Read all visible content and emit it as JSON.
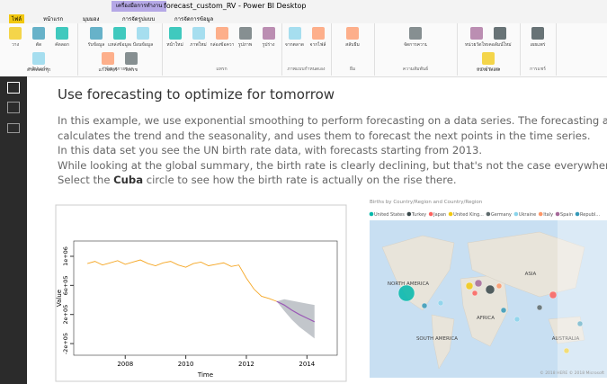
{
  "window": {
    "title": "forecast_custom_RV - Power BI Desktop",
    "context_tab": "เครื่องมือการทำงาน"
  },
  "tabs": [
    "ไฟล์",
    "หน้าแรก",
    "มุมมอง",
    "การจัดรูปแบบ",
    "การจัดการข้อมูล"
  ],
  "ribbon_groups": [
    {
      "label": "คลิปบอร์ด",
      "buttons": [
        "วาง",
        "ตัด",
        "คัดลอก",
        "ตัวคัดลอกรูปแบบ"
      ]
    },
    {
      "label": "ข้อมูลภายนอก",
      "buttons": [
        "รับข้อมูล",
        "แหล่งข้อมูลล่าสุด",
        "ป้อนข้อมูล",
        "แก้ไขคิวรี",
        "รีเฟรช"
      ]
    },
    {
      "label": "แทรก",
      "buttons": [
        "หน้าใหม่",
        "ภาพใหม่",
        "กล่องข้อความ",
        "รูปภาพ",
        "รูปร่าง"
      ]
    },
    {
      "label": "ภาพแบบกำหนดเอง",
      "buttons": [
        "จากตลาด",
        "จากไฟล์"
      ]
    },
    {
      "label": "ธีม",
      "buttons": [
        "สลับธีม"
      ]
    },
    {
      "label": "ความสัมพันธ์",
      "buttons": [
        "จัดการความสัมพันธ์"
      ]
    },
    {
      "label": "การคำนวณ",
      "buttons": [
        "หน่วยวัดใหม่",
        "คอลัมน์ใหม่",
        "หน่วยวัดแบบด่วนใหม่"
      ]
    },
    {
      "label": "การแชร์",
      "buttons": [
        "เผยแพร่"
      ]
    }
  ],
  "report": {
    "heading": "Use forecasting to optimize for tomorrow",
    "lines": [
      "In this example, we use exponential smoothing to perform forecasting on a data series. The forecasting algorithm",
      "calculates the trend and the seasonality, and uses them to forecast the next points in the time series.",
      "In this data set you see the UN birth rate data, with forecasts starting from 2013.",
      "While looking at the global summary, the birth rate is clearly declining, but that's not the case everywhere."
    ],
    "last_line": [
      "Select the ",
      "Cuba",
      " circle to see how the birth rate is actually on the rise there."
    ]
  },
  "forecast_chart": {
    "type": "line",
    "x_label": "Time",
    "y_label": "Value",
    "xlim": [
      2006.3,
      2015
    ],
    "ylim": [
      -360000,
      1210000
    ],
    "xticks": [
      2008,
      2010,
      2012,
      2014
    ],
    "yticks": [
      {
        "value": -200000,
        "label": "-2e+05"
      },
      {
        "value": 200000,
        "label": "2e+05"
      },
      {
        "value": 600000,
        "label": "6e+05"
      },
      {
        "value": 1000000,
        "label": "1e+06"
      }
    ],
    "series": [
      {
        "color": "#f5a623",
        "x": [
          2006.75,
          2007,
          2007.25,
          2007.5,
          2007.75,
          2008,
          2008.25,
          2008.5,
          2008.75,
          2009,
          2009.25,
          2009.5,
          2009.75,
          2010,
          2010.25,
          2010.5,
          2010.75,
          2011,
          2011.25,
          2011.5,
          2011.75,
          2012,
          2012.25,
          2012.5,
          2012.75,
          2013
        ],
        "values": [
          900000,
          930000,
          880000,
          910000,
          940000,
          890000,
          920000,
          950000,
          900000,
          870000,
          910000,
          930000,
          880000,
          850000,
          900000,
          920000,
          870000,
          890000,
          910000,
          860000,
          880000,
          700000,
          550000,
          450000,
          420000,
          380000
        ]
      }
    ],
    "forecast": {
      "color": "#9b59b6",
      "band_color": "#9aa0a8",
      "x": [
        2013,
        2013.25,
        2013.5,
        2013.75,
        2014,
        2014.25
      ],
      "values": [
        380000,
        330000,
        260000,
        200000,
        150000,
        100000
      ],
      "lower": [
        380000,
        250000,
        130000,
        30000,
        -50000,
        -130000
      ],
      "upper": [
        380000,
        410000,
        390000,
        370000,
        350000,
        330000
      ]
    }
  },
  "map": {
    "title": "Births by Country/Region and Country/Region",
    "legend": [
      {
        "name": "United States",
        "color": "#01b8aa"
      },
      {
        "name": "Turkey",
        "color": "#374649"
      },
      {
        "name": "Japan",
        "color": "#fd625e"
      },
      {
        "name": "United King...",
        "color": "#f2c80f"
      },
      {
        "name": "Germany",
        "color": "#5f6b6d"
      },
      {
        "name": "Ukraine",
        "color": "#8ad4eb"
      },
      {
        "name": "Italy",
        "color": "#fe9666"
      },
      {
        "name": "Spain",
        "color": "#a66999"
      },
      {
        "name": "Republ...",
        "color": "#3599b8"
      }
    ],
    "regions": [
      "NORTH AMERICA",
      "ASIA",
      "AFRICA",
      "SOUTH AMERICA",
      "AUSTRALIA"
    ],
    "credit": "© 2018 HERE  © 2018 Microsoft"
  }
}
